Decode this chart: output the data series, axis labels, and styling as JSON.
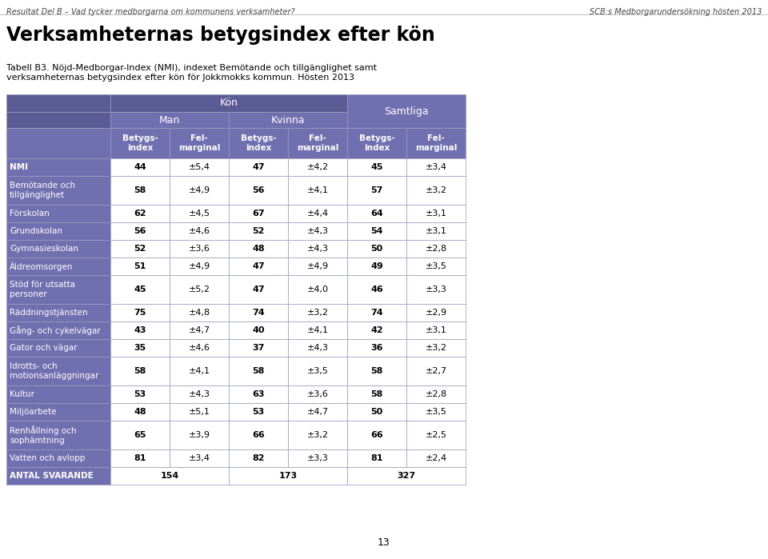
{
  "header_title": "Verksamheternas betygsindex efter kön",
  "top_left_text": "Resultat Del B – Vad tycker medborgarna om kommunens verksamheter?",
  "top_right_text": "SCB:s Medborgarundersökning hösten 2013",
  "caption": "Tabell B3. Nöjd-Medborgar-Index (NMI), indexet Bemötande och tillgänglighet samt\nverksamheternas betygsindex efter kön för Jokkmokks kommun. Hösten 2013",
  "page_number": "13",
  "header_bg": "#5b5b96",
  "header_fg": "#ffffff",
  "subheader_bg": "#7070b0",
  "label_col_bg": "#7070b0",
  "row_white_bg": "#ffffff",
  "border_color": "#9999bb",
  "col_headers": [
    "Betygs-\nindex",
    "Fel-\nmarginal",
    "Betygs-\nindex",
    "Fel-\nmarginal",
    "Betygs-\nindex",
    "Fel-\nmarginal"
  ],
  "rows": [
    {
      "label": "NMI",
      "values": [
        "44",
        "±5,4",
        "47",
        "±4,2",
        "45",
        "±3,4"
      ],
      "bold": true,
      "tall": false
    },
    {
      "label": "Bemötande och\ntillgänglighet",
      "values": [
        "58",
        "±4,9",
        "56",
        "±4,1",
        "57",
        "±3,2"
      ],
      "bold": false,
      "tall": true
    },
    {
      "label": "Förskolan",
      "values": [
        "62",
        "±4,5",
        "67",
        "±4,4",
        "64",
        "±3,1"
      ],
      "bold": false,
      "tall": false
    },
    {
      "label": "Grundskolan",
      "values": [
        "56",
        "±4,6",
        "52",
        "±4,3",
        "54",
        "±3,1"
      ],
      "bold": false,
      "tall": false
    },
    {
      "label": "Gymnasieskolan",
      "values": [
        "52",
        "±3,6",
        "48",
        "±4,3",
        "50",
        "±2,8"
      ],
      "bold": false,
      "tall": false
    },
    {
      "label": "Äldreomsorgen",
      "values": [
        "51",
        "±4,9",
        "47",
        "±4,9",
        "49",
        "±3,5"
      ],
      "bold": false,
      "tall": false
    },
    {
      "label": "Stöd för utsatta\npersoner",
      "values": [
        "45",
        "±5,2",
        "47",
        "±4,0",
        "46",
        "±3,3"
      ],
      "bold": false,
      "tall": true
    },
    {
      "label": "Räddningstjänsten",
      "values": [
        "75",
        "±4,8",
        "74",
        "±3,2",
        "74",
        "±2,9"
      ],
      "bold": false,
      "tall": false
    },
    {
      "label": "Gång- och cykelvägar",
      "values": [
        "43",
        "±4,7",
        "40",
        "±4,1",
        "42",
        "±3,1"
      ],
      "bold": false,
      "tall": false
    },
    {
      "label": "Gator och vägar",
      "values": [
        "35",
        "±4,6",
        "37",
        "±4,3",
        "36",
        "±3,2"
      ],
      "bold": false,
      "tall": false
    },
    {
      "label": "Idrotts- och\nmotionsanläggningar",
      "values": [
        "58",
        "±4,1",
        "58",
        "±3,5",
        "58",
        "±2,7"
      ],
      "bold": false,
      "tall": true
    },
    {
      "label": "Kultur",
      "values": [
        "53",
        "±4,3",
        "63",
        "±3,6",
        "58",
        "±2,8"
      ],
      "bold": false,
      "tall": false
    },
    {
      "label": "Miljöarbete",
      "values": [
        "48",
        "±5,1",
        "53",
        "±4,7",
        "50",
        "±3,5"
      ],
      "bold": false,
      "tall": false
    },
    {
      "label": "Renhållning och\nsophämtning",
      "values": [
        "65",
        "±3,9",
        "66",
        "±3,2",
        "66",
        "±2,5"
      ],
      "bold": false,
      "tall": true
    },
    {
      "label": "Vatten och avlopp",
      "values": [
        "81",
        "±3,4",
        "82",
        "±3,3",
        "81",
        "±2,4"
      ],
      "bold": false,
      "tall": false
    },
    {
      "label": "ANTAL SVARANDE",
      "values": [
        "154",
        "",
        "173",
        "",
        "327",
        ""
      ],
      "bold": true,
      "tall": false,
      "merged": true
    }
  ]
}
